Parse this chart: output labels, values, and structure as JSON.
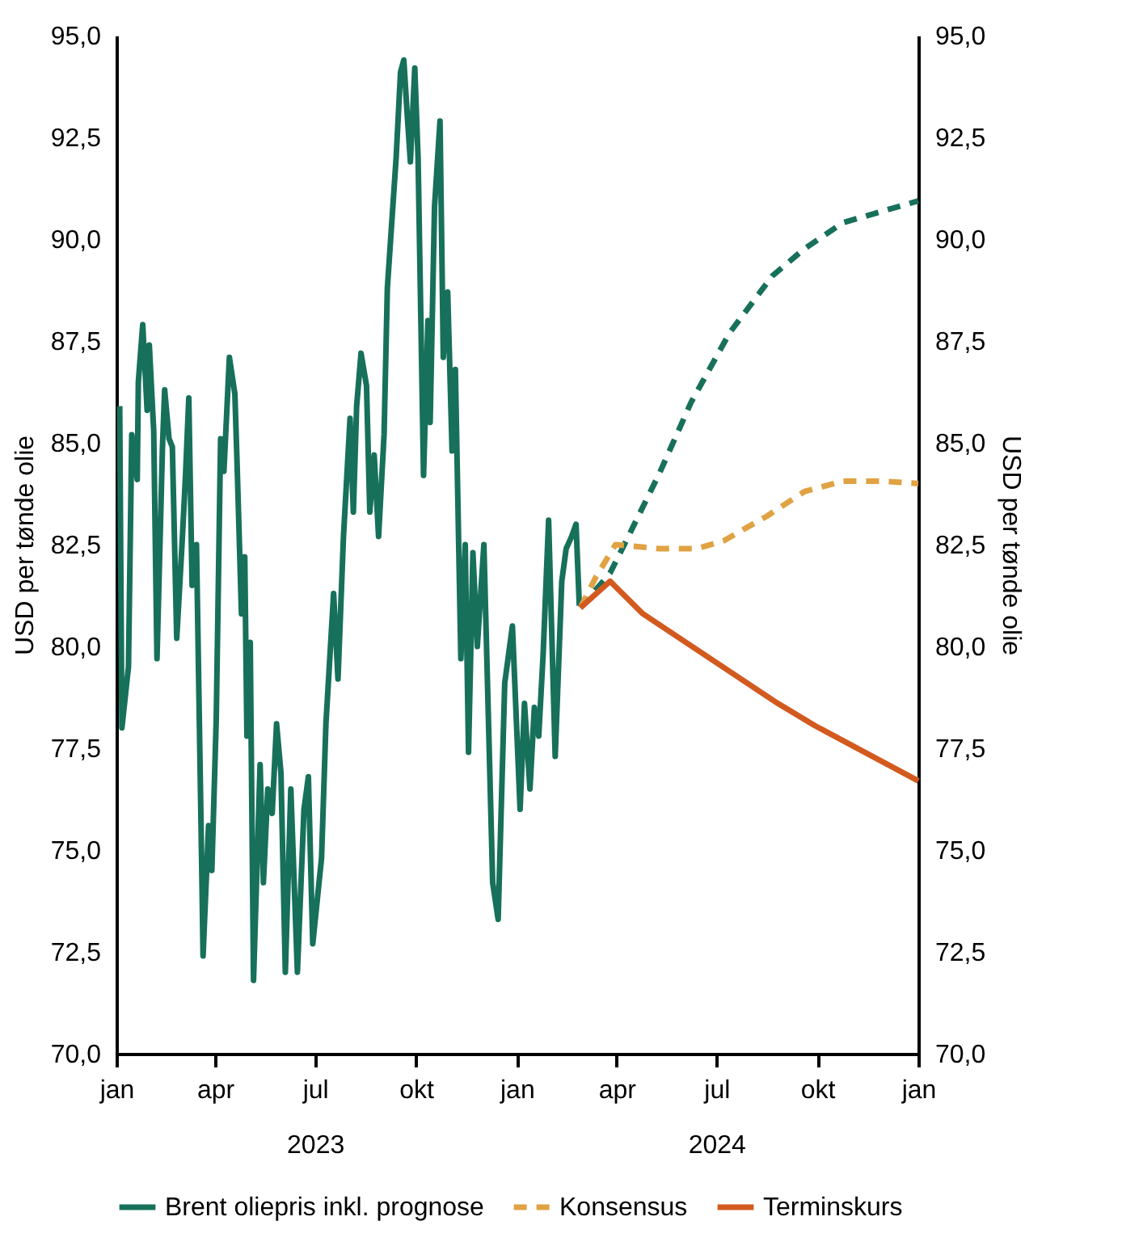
{
  "chart_data": {
    "type": "line",
    "ylabel": "USD per tønde olie",
    "y2label": "USD per tønde olie",
    "xlim": [
      "2023-01-01",
      "2025-01-01"
    ],
    "xticks": [
      {
        "value": "2023-01-01",
        "label": "jan"
      },
      {
        "value": "2023-04-01",
        "label": "apr"
      },
      {
        "value": "2023-07-01",
        "label": "jul\n2023"
      },
      {
        "value": "2023-10-01",
        "label": "okt"
      },
      {
        "value": "2024-01-01",
        "label": "jan"
      },
      {
        "value": "2024-04-01",
        "label": "apr"
      },
      {
        "value": "2024-07-01",
        "label": "jul\n2024"
      },
      {
        "value": "2024-10-01",
        "label": "okt"
      },
      {
        "value": "2025-01-01",
        "label": "jan"
      }
    ],
    "ylim": [
      70,
      95
    ],
    "yticks": [
      {
        "value": 70,
        "label": "70,0"
      },
      {
        "value": 72.5,
        "label": "72,5"
      },
      {
        "value": 75,
        "label": "75,0"
      },
      {
        "value": 77.5,
        "label": "77,5"
      },
      {
        "value": 80,
        "label": "80,0"
      },
      {
        "value": 82.5,
        "label": "82,5"
      },
      {
        "value": 85,
        "label": "85,0"
      },
      {
        "value": 87.5,
        "label": "87,5"
      },
      {
        "value": 90,
        "label": "90,0"
      },
      {
        "value": 92.5,
        "label": "92,5"
      },
      {
        "value": 95,
        "label": "95,0"
      }
    ],
    "y2lim": [
      70,
      95
    ],
    "y2ticks": [
      {
        "value": 70,
        "label": "70,0"
      },
      {
        "value": 72.5,
        "label": "72,5"
      },
      {
        "value": 75,
        "label": "75,0"
      },
      {
        "value": 77.5,
        "label": "77,5"
      },
      {
        "value": 80,
        "label": "80,0"
      },
      {
        "value": 82.5,
        "label": "82,5"
      },
      {
        "value": 85,
        "label": "85,0"
      },
      {
        "value": 87.5,
        "label": "87,5"
      },
      {
        "value": 90,
        "label": "90,0"
      },
      {
        "value": 92.5,
        "label": "92,5"
      },
      {
        "value": 95,
        "label": "95,0"
      }
    ],
    "grid": false,
    "legend": "bottom",
    "marker": "none",
    "series": [
      {
        "name": "Brent oliepris inkl. prognose",
        "color": "#17705a",
        "line_style": "solid",
        "x": [
          "2023-01-04",
          "2023-01-06",
          "2023-01-12",
          "2023-01-15",
          "2023-01-20",
          "2023-01-21",
          "2023-01-25",
          "2023-01-29",
          "2023-01-31",
          "2023-02-04",
          "2023-02-07",
          "2023-02-12",
          "2023-02-14",
          "2023-02-18",
          "2023-02-21",
          "2023-02-25",
          "2023-03-02",
          "2023-03-05",
          "2023-03-08",
          "2023-03-11",
          "2023-03-15",
          "2023-03-20",
          "2023-03-21",
          "2023-03-26",
          "2023-03-29",
          "2023-04-02",
          "2023-04-06",
          "2023-04-09",
          "2023-04-14",
          "2023-04-19",
          "2023-04-21",
          "2023-04-25",
          "2023-04-28",
          "2023-04-30",
          "2023-05-03",
          "2023-05-06",
          "2023-05-12",
          "2023-05-15",
          "2023-05-19",
          "2023-05-23",
          "2023-05-27",
          "2023-05-31",
          "2023-06-04",
          "2023-06-09",
          "2023-06-15",
          "2023-06-21",
          "2023-06-25",
          "2023-06-29",
          "2023-07-07",
          "2023-07-11",
          "2023-07-18",
          "2023-07-22",
          "2023-07-27",
          "2023-08-02",
          "2023-08-05",
          "2023-08-08",
          "2023-08-12",
          "2023-08-17",
          "2023-08-20",
          "2023-08-24",
          "2023-08-28",
          "2023-09-02",
          "2023-09-05",
          "2023-09-09",
          "2023-09-13",
          "2023-09-17",
          "2023-09-20",
          "2023-09-23",
          "2023-09-26",
          "2023-09-30",
          "2023-10-03",
          "2023-10-08",
          "2023-10-12",
          "2023-10-14",
          "2023-10-18",
          "2023-10-23",
          "2023-10-26",
          "2023-10-30",
          "2023-11-03",
          "2023-11-06",
          "2023-11-11",
          "2023-11-15",
          "2023-11-18",
          "2023-11-22",
          "2023-11-26",
          "2023-12-02",
          "2023-12-10",
          "2023-12-15",
          "2023-12-21",
          "2023-12-28",
          "2024-01-04",
          "2024-01-08",
          "2024-01-13",
          "2024-01-17",
          "2024-01-21",
          "2024-01-25",
          "2024-01-30",
          "2024-02-05",
          "2024-02-11",
          "2024-02-15",
          "2024-02-20",
          "2024-02-24",
          "2024-02-27"
        ],
        "values": [
          85.9,
          78.0,
          79.5,
          85.2,
          84.1,
          86.5,
          87.9,
          85.8,
          87.4,
          85.3,
          79.7,
          84.9,
          86.3,
          85.1,
          84.9,
          80.2,
          82.6,
          84.2,
          86.1,
          81.5,
          82.5,
          74.2,
          72.4,
          75.6,
          74.5,
          78.2,
          85.1,
          84.3,
          87.1,
          86.2,
          84.5,
          80.8,
          82.2,
          77.8,
          80.1,
          71.8,
          77.1,
          74.2,
          76.5,
          75.9,
          78.1,
          76.9,
          72.0,
          76.5,
          72.0,
          76.0,
          76.8,
          72.7,
          74.8,
          78.1,
          81.3,
          79.2,
          82.7,
          85.6,
          83.3,
          85.9,
          87.2,
          86.4,
          83.3,
          84.7,
          82.7,
          85.2,
          88.8,
          90.4,
          92.0,
          94.1,
          94.4,
          93.1,
          91.9,
          94.2,
          92.0,
          84.2,
          88.0,
          85.5,
          90.8,
          92.9,
          87.1,
          88.7,
          84.8,
          86.8,
          79.7,
          82.5,
          77.4,
          82.3,
          80.0,
          82.5,
          74.2,
          73.3,
          79.1,
          80.5,
          76.0,
          78.6,
          76.5,
          78.5,
          77.8,
          79.8,
          83.1,
          77.3,
          81.6,
          82.4,
          82.7,
          83.0,
          81.0
        ]
      },
      {
        "color": "#17705a",
        "line_style": "dashed",
        "x": [
          "2024-02-28",
          "2024-03-26",
          "2024-04-08",
          "2024-05-10",
          "2024-06-08",
          "2024-07-13",
          "2024-08-21",
          "2024-09-19",
          "2024-10-24",
          "2024-11-27",
          "2025-01-01"
        ],
        "values": [
          80.95,
          81.8,
          82.5,
          84.25,
          86.0,
          87.7,
          89.1,
          89.76,
          90.4,
          90.67,
          90.94
        ]
      },
      {
        "name": "Konsensus",
        "color": "#e0a243",
        "line_style": "dashed",
        "x": [
          "2024-02-28",
          "2024-03-13",
          "2024-03-31",
          "2024-05-10",
          "2024-06-13",
          "2024-07-08",
          "2024-08-16",
          "2024-09-19",
          "2024-10-24",
          "2024-11-27",
          "2025-01-01"
        ],
        "values": [
          80.95,
          81.7,
          82.5,
          82.4,
          82.4,
          82.6,
          83.2,
          83.8,
          84.06,
          84.06,
          84.0
        ]
      },
      {
        "name": "Terminskurs",
        "color": "#d35a1e",
        "line_style": "solid",
        "x": [
          "2024-02-28",
          "2024-03-26",
          "2024-04-25",
          "2024-08-26",
          "2024-09-29",
          "2025-01-01"
        ],
        "values": [
          80.95,
          81.6,
          80.8,
          78.6,
          78.05,
          76.7
        ]
      }
    ]
  }
}
